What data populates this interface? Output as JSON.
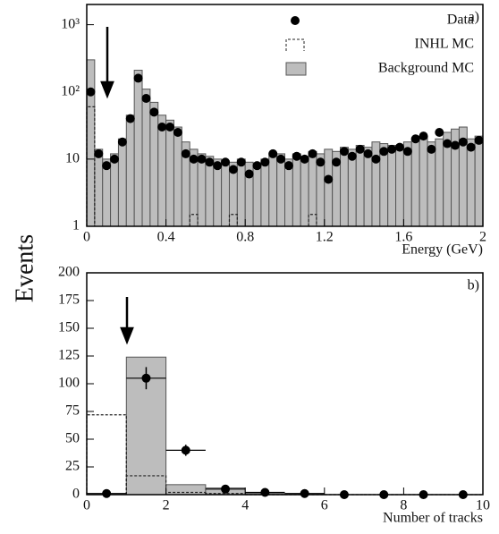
{
  "chart_data": [
    {
      "type": "histogram",
      "label": "a)",
      "ylabel": "Events",
      "xlabel": "Energy (GeV)",
      "log_y": true,
      "legend": "top-right",
      "bins": [
        0,
        0.04,
        0.08,
        0.12,
        0.16,
        0.2,
        0.24,
        0.28,
        0.32,
        0.36,
        0.4,
        0.44,
        0.48,
        0.52,
        0.56,
        0.6,
        0.64,
        0.68,
        0.72,
        0.76,
        0.8,
        0.84,
        0.88,
        0.92,
        0.96,
        1.0,
        1.04,
        1.08,
        1.12,
        1.16,
        1.2,
        1.24,
        1.28,
        1.32,
        1.36,
        1.4,
        1.44,
        1.48,
        1.52,
        1.56,
        1.6,
        1.64,
        1.68,
        1.72,
        1.76,
        1.8,
        1.84,
        1.88,
        1.92,
        1.96,
        2.0
      ],
      "xlim": [
        0,
        2
      ],
      "xticks": [
        0,
        0.4,
        0.8,
        1.2,
        1.6,
        2
      ],
      "ylim": [
        1,
        2000
      ],
      "yticks": [
        1,
        10,
        {
          "value": 100,
          "label": "10²"
        },
        {
          "value": 1000,
          "label": "10³"
        }
      ],
      "series": [
        {
          "name": "Background MC",
          "style": "filled",
          "color": "#bdbdbd",
          "values": [
            300,
            14,
            10,
            12,
            20,
            45,
            210,
            110,
            70,
            45,
            38,
            30,
            18,
            14,
            12,
            11,
            10,
            9,
            9,
            10,
            9,
            8,
            10,
            12,
            12,
            10,
            12,
            11,
            13,
            12,
            14,
            13,
            15,
            14,
            16,
            15,
            18,
            17,
            16,
            15,
            18,
            20,
            22,
            18,
            20,
            25,
            28,
            30,
            20,
            22
          ]
        },
        {
          "name": "INHL MC",
          "style": "dashed",
          "color": "#222222",
          "values": [
            60,
            null,
            null,
            null,
            null,
            null,
            null,
            null,
            null,
            null,
            null,
            null,
            null,
            1.5,
            null,
            null,
            null,
            null,
            1.5,
            null,
            null,
            null,
            null,
            null,
            null,
            null,
            null,
            null,
            1.5,
            null,
            null,
            null,
            null,
            null,
            null,
            null,
            null,
            null,
            null,
            null,
            null,
            null,
            null,
            null,
            null,
            null,
            null,
            null,
            null,
            null
          ]
        },
        {
          "name": "Data",
          "style": "points",
          "color": "#000000",
          "values": [
            100,
            12,
            8,
            10,
            18,
            40,
            160,
            80,
            50,
            30,
            30,
            25,
            12,
            10,
            10,
            9,
            8,
            9,
            7,
            9,
            6,
            8,
            9,
            12,
            10,
            8,
            11,
            10,
            12,
            9,
            5,
            9,
            13,
            11,
            14,
            12,
            10,
            13,
            14,
            15,
            13,
            20,
            22,
            14,
            25,
            17,
            16,
            18,
            15,
            19
          ]
        }
      ]
    },
    {
      "type": "histogram",
      "label": "b)",
      "xlabel": "Number of tracks",
      "log_y": false,
      "bins": [
        0,
        1,
        2,
        3,
        4,
        5,
        6,
        7,
        8,
        9,
        10
      ],
      "xlim": [
        0,
        10
      ],
      "xticks": [
        0,
        2,
        4,
        6,
        8,
        10
      ],
      "ylim": [
        0,
        200
      ],
      "yticks": [
        0,
        25,
        50,
        75,
        100,
        125,
        150,
        175,
        200
      ],
      "series": [
        {
          "style": "filled",
          "color": "#bdbdbd",
          "values": [
            0,
            124,
            9,
            6,
            1,
            0,
            0,
            0,
            0,
            0
          ]
        },
        {
          "style": "dashed",
          "color": "#222222",
          "values": [
            72,
            17,
            2,
            1,
            0,
            0,
            0,
            0,
            0,
            0
          ]
        },
        {
          "style": "points",
          "color": "#000000",
          "bin_errors": true,
          "values": [
            1,
            105,
            40,
            5,
            2,
            1,
            0,
            0,
            0,
            0
          ],
          "errors": [
            0,
            10,
            5,
            2,
            1,
            0,
            0,
            0,
            0,
            0
          ]
        }
      ]
    }
  ]
}
